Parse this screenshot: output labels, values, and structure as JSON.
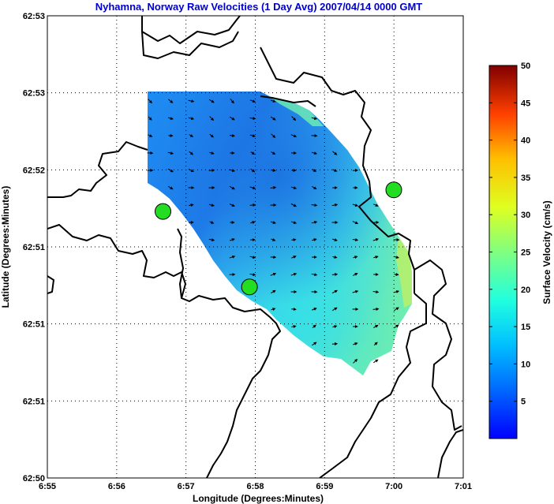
{
  "chart_data": {
    "type": "heatmap",
    "title": "Nyhamna, Norway Raw Velocities (1 Day Avg) 2007/04/14 0000 GMT",
    "xlabel": "Longitude (Degrees:Minutes)",
    "ylabel": "Latitude (Degrees:Minutes)",
    "x_ticks": [
      "6:55",
      "6:56",
      "6:57",
      "6:58",
      "6:59",
      "7:00",
      "7:01"
    ],
    "y_ticks": [
      "62:53",
      "62:53",
      "62:52",
      "62:51",
      "62:51",
      "62:51",
      "62:50"
    ],
    "xlim": [
      6.9167,
      7.0167
    ],
    "ylim": [
      0,
      6
    ],
    "grid": true,
    "colorbar": {
      "label": "Surface Velocity (cm/s)",
      "ticks": [
        "5",
        "10",
        "15",
        "20",
        "25",
        "30",
        "35",
        "40",
        "45",
        "50"
      ],
      "range": [
        0,
        50
      ],
      "colormap": "jet"
    },
    "stations": [
      {
        "lon": 6.9445,
        "lat": 3.46
      },
      {
        "lon": 6.9653,
        "lat": 2.48
      },
      {
        "lon": 7.0,
        "lat": 3.74
      }
    ],
    "title_color": "#0000cc",
    "station_color": "#22dd22"
  }
}
